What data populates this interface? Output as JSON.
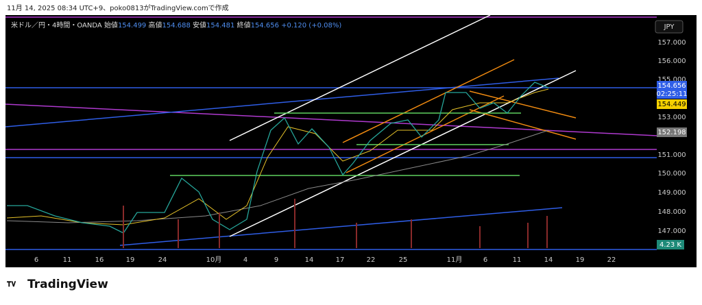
{
  "header": {
    "caption": "11月 14, 2025 08:34 UTC+9、poko0813がTradingView.comで作成"
  },
  "legend": {
    "symbol": "米ドル／円・4時間・OANDA",
    "open_label": "始値",
    "open": "154.499",
    "high_label": "高値",
    "high": "154.688",
    "low_label": "安値",
    "low": "154.481",
    "close_label": "終値",
    "close": "154.656",
    "change": "+0.120 (+0.08%)"
  },
  "currency_button": "JPY",
  "price_axis": [
    "157.000",
    "156.000",
    "155.000",
    "153.000",
    "151.000",
    "150.000",
    "149.000",
    "148.000",
    "147.000"
  ],
  "price_tags": {
    "last": "154.656",
    "countdown": "02:25:11",
    "ma": "154.449",
    "line": "152.198",
    "volume": "4.23 K"
  },
  "time_axis": [
    "6",
    "11",
    "16",
    "19",
    "24",
    "10月",
    "4",
    "9",
    "14",
    "17",
    "22",
    "25",
    "11月",
    "6",
    "11",
    "14",
    "19",
    "22"
  ],
  "footer": {
    "logo": "TradingView"
  }
}
